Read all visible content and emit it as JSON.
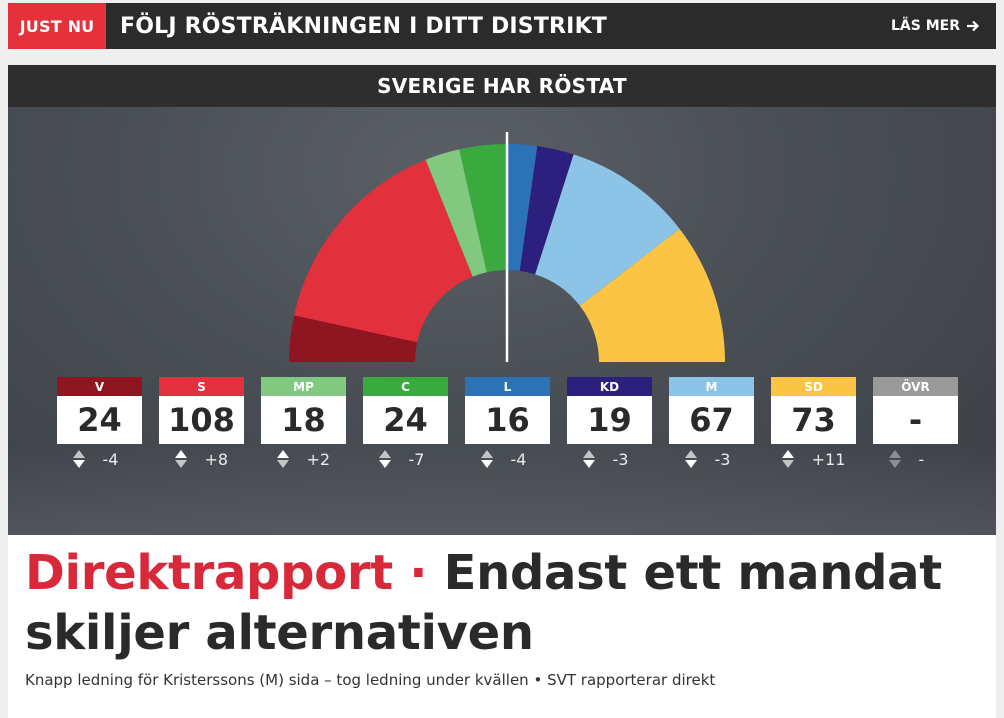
{
  "banner": {
    "tag": "JUST NU",
    "title": "FÖLJ RÖSTRÄKNINGEN I DITT DISTRIKT",
    "link": "LÄS MER"
  },
  "panel": {
    "title": "SVERIGE HAR RÖSTAT"
  },
  "chart_data": {
    "type": "parliament",
    "parties": [
      {
        "label": "V",
        "seats": 24,
        "seats_text": "24",
        "change": "-4",
        "direction": "down",
        "color": "#8f1620"
      },
      {
        "label": "S",
        "seats": 108,
        "seats_text": "108",
        "change": "+8",
        "direction": "up",
        "color": "#e3303d"
      },
      {
        "label": "MP",
        "seats": 18,
        "seats_text": "18",
        "change": "+2",
        "direction": "up",
        "color": "#80c97f"
      },
      {
        "label": "C",
        "seats": 24,
        "seats_text": "24",
        "change": "-7",
        "direction": "down",
        "color": "#3aa93e"
      },
      {
        "label": "L",
        "seats": 16,
        "seats_text": "16",
        "change": "-4",
        "direction": "down",
        "color": "#2b73b6"
      },
      {
        "label": "KD",
        "seats": 19,
        "seats_text": "19",
        "change": "-3",
        "direction": "down",
        "color": "#2d1f7e"
      },
      {
        "label": "M",
        "seats": 67,
        "seats_text": "67",
        "change": "-3",
        "direction": "down",
        "color": "#8cc4e8"
      },
      {
        "label": "SD",
        "seats": 73,
        "seats_text": "73",
        "change": "+11",
        "direction": "up",
        "color": "#fbc445"
      },
      {
        "label": "ÖVR",
        "seats": 0,
        "seats_text": "-",
        "change": "-",
        "direction": "none",
        "color": "#9a9a9a"
      }
    ]
  },
  "article": {
    "kicker": "Direktrapport",
    "separator": " · ",
    "title": "Endast ett mandat skiljer alternativen",
    "subtitle": "Knapp ledning för Kristerssons (M) sida – tog ledning under kvällen • SVT rapporterar direkt"
  }
}
